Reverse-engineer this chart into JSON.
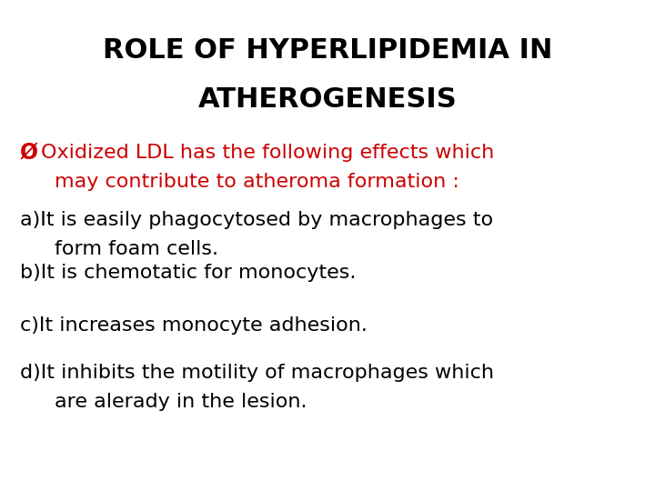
{
  "title_line1": "ROLE OF HYPERLIPIDEMIA IN",
  "title_line2": "ATHEROGENESIS",
  "title_color": "#000000",
  "title_fontsize": 22,
  "bullet_color": "#cc0000",
  "bullet_symbol": "Ø",
  "bullet_text_line1": "Oxidized LDL has the following effects which",
  "bullet_text_line2": "may contribute to atheroma formation :",
  "bullet_fontsize": 16,
  "body_color": "#000000",
  "body_fontsize": 16,
  "items": [
    {
      "label": "a)",
      "line1": "It is easily phagocytosed by macrophages to",
      "line2": "form foam cells."
    },
    {
      "label": "b)",
      "line1": "It is chemotatic for monocytes.",
      "line2": null
    },
    {
      "label": "c)",
      "line1": "It increases monocyte adhesion.",
      "line2": null
    },
    {
      "label": "d)",
      "line1": "It inhibits the motility of macrophages which",
      "line2": "are alerady in the lesion."
    }
  ],
  "background_color": "#ffffff",
  "fig_width": 7.2,
  "fig_height": 5.4,
  "dpi": 100
}
